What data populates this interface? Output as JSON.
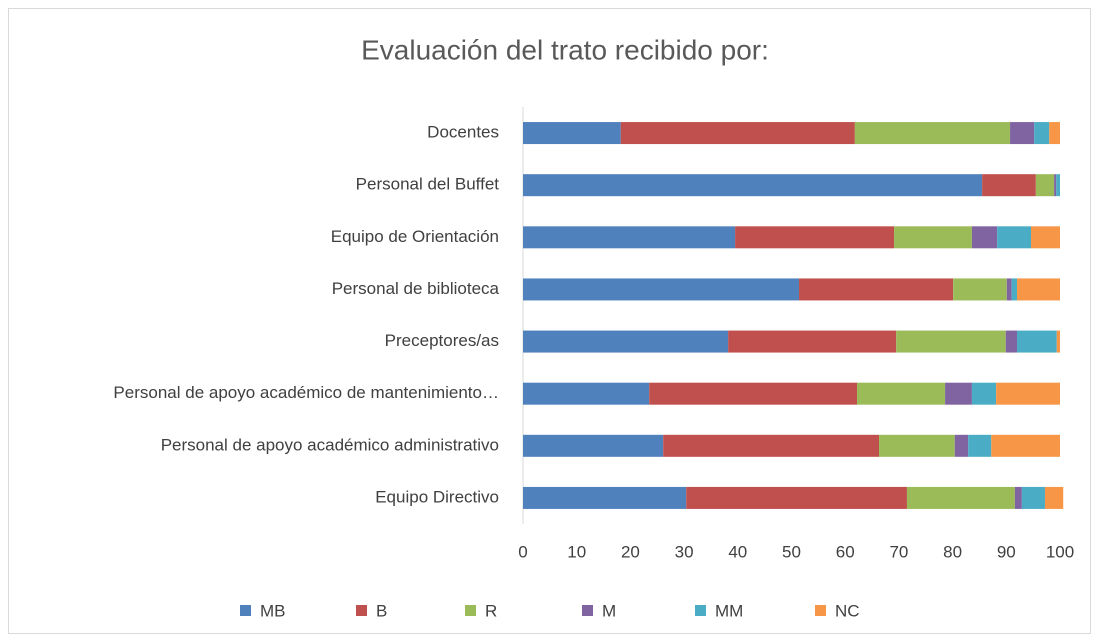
{
  "chart_data": {
    "type": "stacked-barh",
    "title": "Evaluación del trato recibido por:",
    "categories": [
      "Docentes",
      "Personal del Buffet",
      "Equipo de Orientación",
      "Personal de biblioteca",
      "Preceptores/as",
      "Personal de apoyo académico de mantenimiento…",
      "Personal de apoyo académico administrativo",
      "Equipo Directivo"
    ],
    "series": [
      {
        "name": "MB",
        "color": "#4f81bd",
        "values": [
          18.2,
          85.5,
          39.5,
          51.4,
          38.2,
          23.5,
          26.1,
          30.4
        ]
      },
      {
        "name": "B",
        "color": "#c0504d",
        "values": [
          43.6,
          10,
          29.6,
          28.7,
          31.3,
          38.7,
          40.2,
          41.1
        ]
      },
      {
        "name": "R",
        "color": "#9bbb59",
        "values": [
          28.9,
          3.4,
          14.5,
          10,
          20.4,
          16.4,
          14.1,
          20.1
        ]
      },
      {
        "name": "M",
        "color": "#8064a2",
        "values": [
          4.5,
          0.4,
          4.7,
          0.9,
          2.1,
          5,
          2.5,
          1.3
        ]
      },
      {
        "name": "MM",
        "color": "#4bacc6",
        "values": [
          2.8,
          0.7,
          6.3,
          1,
          7.4,
          4.5,
          4.3,
          4.3
        ]
      },
      {
        "name": "NC",
        "color": "#f79646",
        "values": [
          2,
          0,
          5.4,
          8,
          0.6,
          11.9,
          12.8,
          3.4
        ]
      }
    ],
    "xlim": [
      0,
      100
    ],
    "xticks": [
      0,
      10,
      20,
      30,
      40,
      50,
      60,
      70,
      80,
      90,
      100
    ],
    "legend": "bottom"
  }
}
